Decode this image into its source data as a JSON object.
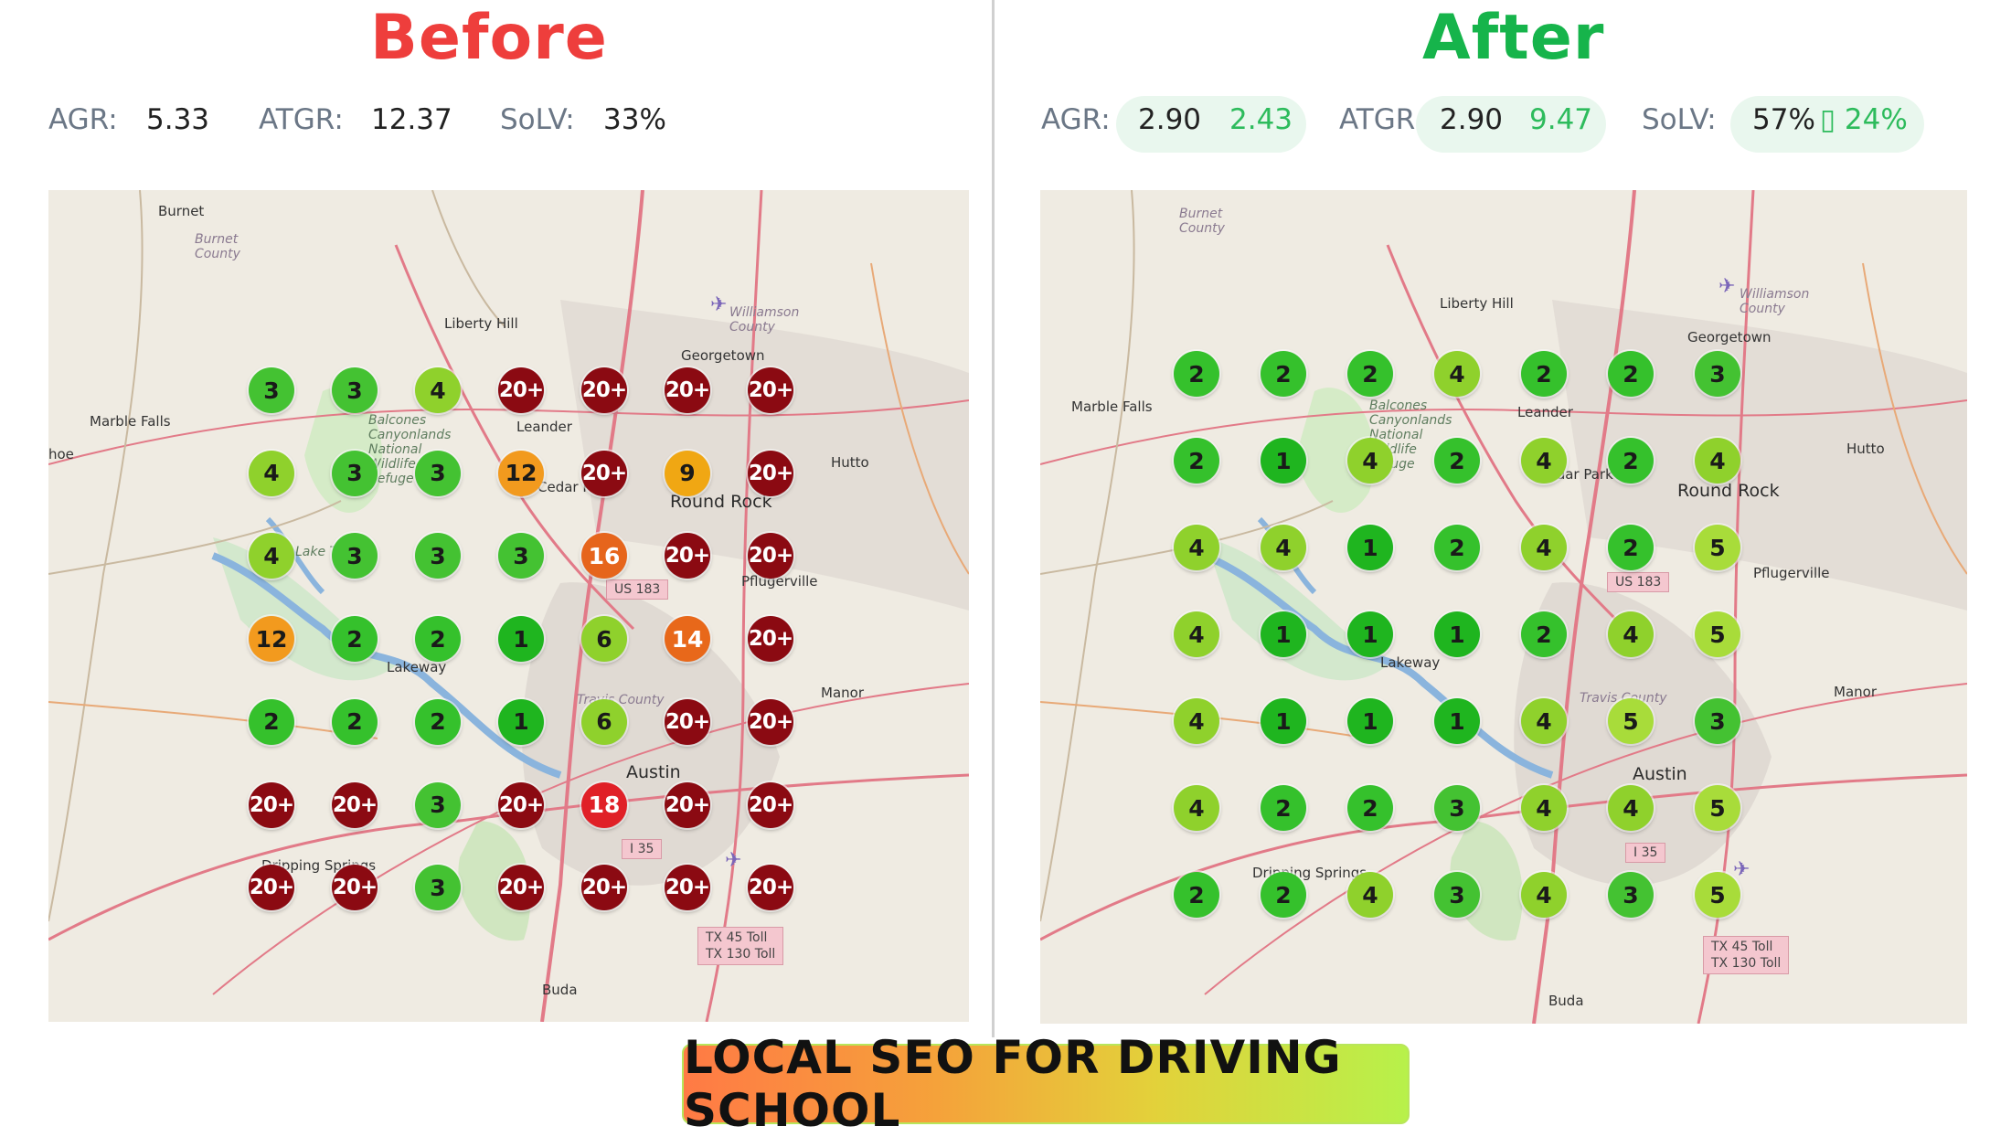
{
  "before": {
    "title": "Before",
    "agr_label": "AGR:",
    "agr_value": "5.33",
    "atgr_label": "ATGR:",
    "atgr_value": "12.37",
    "solv_label": "SoLV:",
    "solv_value": "33%",
    "grid": [
      [
        "3",
        "3",
        "4",
        "20+",
        "20+",
        "20+",
        "20+"
      ],
      [
        "4",
        "3",
        "3",
        "12",
        "20+",
        "9",
        "20+"
      ],
      [
        "4",
        "3",
        "3",
        "3",
        "16",
        "20+",
        "20+"
      ],
      [
        "12",
        "2",
        "2",
        "1",
        "6",
        "14",
        "20+"
      ],
      [
        "2",
        "2",
        "2",
        "1",
        "6",
        "20+",
        "20+"
      ],
      [
        "20+",
        "20+",
        "3",
        "20+",
        "18",
        "20+",
        "20+"
      ],
      [
        "20+",
        "20+",
        "3",
        "20+",
        "20+",
        "20+",
        "20+"
      ]
    ]
  },
  "after": {
    "title": "After",
    "agr_label": "AGR:",
    "agr_value": "2.90",
    "agr_delta": "2.43",
    "atgr_label": "ATGR:",
    "atgr_value": "2.90",
    "atgr_delta": "9.47",
    "solv_label": "SoLV:",
    "solv_value": "57%",
    "solv_delta": "▯ 24%",
    "grid": [
      [
        "2",
        "2",
        "2",
        "4",
        "2",
        "2",
        "3"
      ],
      [
        "2",
        "1",
        "4",
        "2",
        "4",
        "2",
        "4"
      ],
      [
        "4",
        "4",
        "1",
        "2",
        "4",
        "2",
        "5"
      ],
      [
        "4",
        "1",
        "1",
        "1",
        "2",
        "4",
        "5"
      ],
      [
        "4",
        "1",
        "1",
        "1",
        "4",
        "5",
        "3"
      ],
      [
        "4",
        "2",
        "2",
        "3",
        "4",
        "4",
        "5"
      ],
      [
        "2",
        "2",
        "4",
        "3",
        "4",
        "3",
        "5"
      ]
    ]
  },
  "rank_colors": {
    "1": "#1fb51f",
    "2": "#35c12c",
    "3": "#44c232",
    "4": "#8fd12c",
    "5": "#a8dc3a",
    "6": "#8fd12c",
    "9": "#f0a713",
    "12": "#f29a1e",
    "14": "#e8681a",
    "16": "#e6651c",
    "18": "#e02027",
    "20+": "#8b0a12"
  },
  "map_labels": {
    "burnet": "Burnet",
    "burnet_county": "Burnet County",
    "liberty_hill": "Liberty Hill",
    "georgetown": "Georgetown",
    "williamson_county": "Williamson County",
    "marble_falls": "Marble Falls",
    "balcones": "Balcones Canyonlands National Wildlife Refuge",
    "leander": "Leander",
    "cedar_park": "Cedar Park",
    "hutto": "Hutto",
    "round_rock": "Round Rock",
    "pflugerville": "Pflugerville",
    "lakeway": "Lakeway",
    "travis_county": "Travis County",
    "manor": "Manor",
    "austin": "Austin",
    "dripping_springs": "Dripping Springs",
    "buda": "Buda",
    "hoe": "hoe",
    "lake": "Lake Tr",
    "us183": "US 183",
    "i35": "I 35",
    "tx45": "TX 45 Toll",
    "tx130": "TX 130 Toll"
  },
  "banner": "LOCAL SEO FOR DRIVING SCHOOL"
}
